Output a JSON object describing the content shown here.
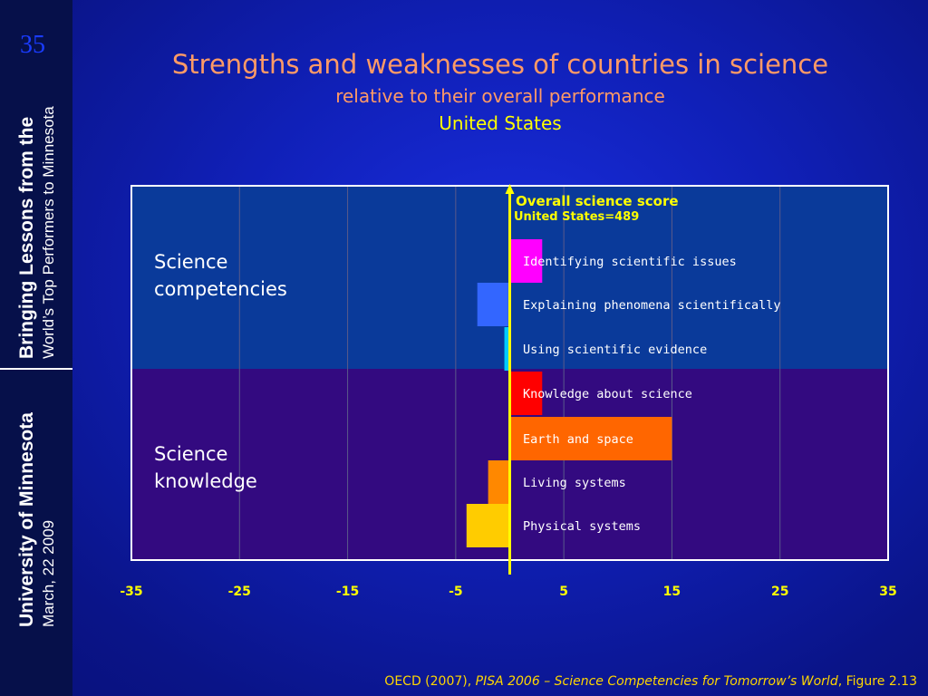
{
  "slide": {
    "number": "35",
    "sidebar_line1": "Bringing Lessons from the",
    "sidebar_line2": "World’s Top Performers to Minnesota",
    "sidebar_line3": "University of Minnesota",
    "sidebar_line4": "March, 22 2009",
    "title": "Strengths and weaknesses of countries in science",
    "subtitle": "relative to their overall performance",
    "country": "United States",
    "footer_prefix": "OECD (2007), ",
    "footer_italic": "PISA 2006 – Science Competencies for Tomorrow’s World",
    "footer_suffix": ", Figure 2.13"
  },
  "chart_data": {
    "type": "bar",
    "orientation": "horizontal",
    "reference_line": {
      "value": 0,
      "label": "Overall science score",
      "sublabel": "United States=489",
      "color": "#ffff00"
    },
    "xlim": [
      -35,
      35
    ],
    "xticks": [
      "-35",
      "-25",
      "-15",
      "-5",
      "5",
      "15",
      "25",
      "35"
    ],
    "xtick_values": [
      -35,
      -25,
      -15,
      -5,
      5,
      15,
      25,
      35
    ],
    "grid": true,
    "groups": [
      {
        "label": "Science competencies",
        "label_lines": [
          "Science",
          "competencies"
        ],
        "background": "#0a3a9a"
      },
      {
        "label": "Science knowledge",
        "label_lines": [
          "Science",
          "knowledge"
        ],
        "background": "#330a80"
      }
    ],
    "bars": [
      {
        "category": "Identifying scientific issues",
        "value": 3,
        "color": "#ff00ff",
        "group": 0
      },
      {
        "category": "Explaining phenomena scientifically",
        "value": -3,
        "color": "#3366ff",
        "group": 0
      },
      {
        "category": "Using scientific evidence",
        "value": -0.5,
        "color": "#00ccff",
        "group": 0
      },
      {
        "category": "Knowledge about science",
        "value": 3,
        "color": "#ff0000",
        "group": 1
      },
      {
        "category": "Earth and space",
        "value": 15,
        "color": "#ff6600",
        "group": 1
      },
      {
        "category": "Living systems",
        "value": -2,
        "color": "#ff8800",
        "group": 1
      },
      {
        "category": "Physical systems",
        "value": -4,
        "color": "#ffcc00",
        "group": 1
      }
    ]
  }
}
